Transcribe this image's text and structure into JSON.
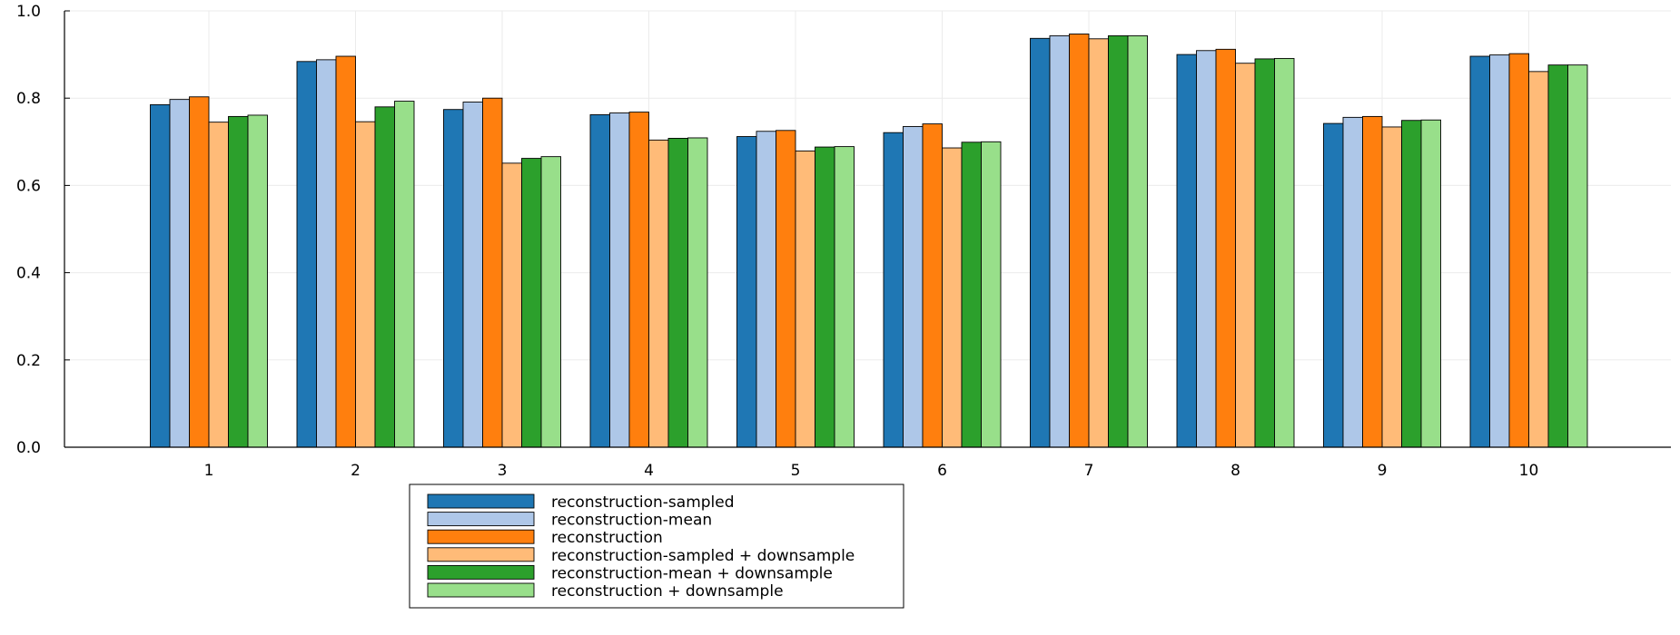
{
  "chart_data": {
    "type": "bar",
    "title": "",
    "xlabel": "",
    "ylabel": "",
    "ylim": [
      0,
      1.0
    ],
    "y_ticks": [
      "0.0",
      "0.2",
      "0.4",
      "0.6",
      "0.8",
      "1.0"
    ],
    "categories": [
      "1",
      "2",
      "3",
      "4",
      "5",
      "6",
      "7",
      "8",
      "9",
      "10"
    ],
    "grid": true,
    "legend_position": "bottom",
    "series": [
      {
        "name": "reconstruction-sampled",
        "color": "#1f77b4",
        "values": [
          0.785,
          0.884,
          0.774,
          0.762,
          0.712,
          0.721,
          0.937,
          0.9,
          0.742,
          0.896
        ]
      },
      {
        "name": "reconstruction-mean",
        "color": "#aec7e8",
        "values": [
          0.797,
          0.888,
          0.791,
          0.766,
          0.724,
          0.735,
          0.943,
          0.909,
          0.756,
          0.899
        ]
      },
      {
        "name": "reconstruction",
        "color": "#ff7f0e",
        "values": [
          0.803,
          0.896,
          0.8,
          0.768,
          0.726,
          0.741,
          0.947,
          0.912,
          0.758,
          0.902
        ]
      },
      {
        "name": "reconstruction-sampled + downsample",
        "color": "#ffbb78",
        "values": [
          0.745,
          0.746,
          0.651,
          0.704,
          0.679,
          0.686,
          0.936,
          0.88,
          0.734,
          0.861
        ]
      },
      {
        "name": "reconstruction-mean + downsample",
        "color": "#2ca02c",
        "values": [
          0.758,
          0.78,
          0.662,
          0.708,
          0.688,
          0.699,
          0.943,
          0.89,
          0.749,
          0.876
        ]
      },
      {
        "name": "reconstruction + downsample",
        "color": "#98df8a",
        "values": [
          0.761,
          0.793,
          0.666,
          0.709,
          0.689,
          0.7,
          0.943,
          0.891,
          0.75,
          0.876
        ]
      }
    ]
  }
}
